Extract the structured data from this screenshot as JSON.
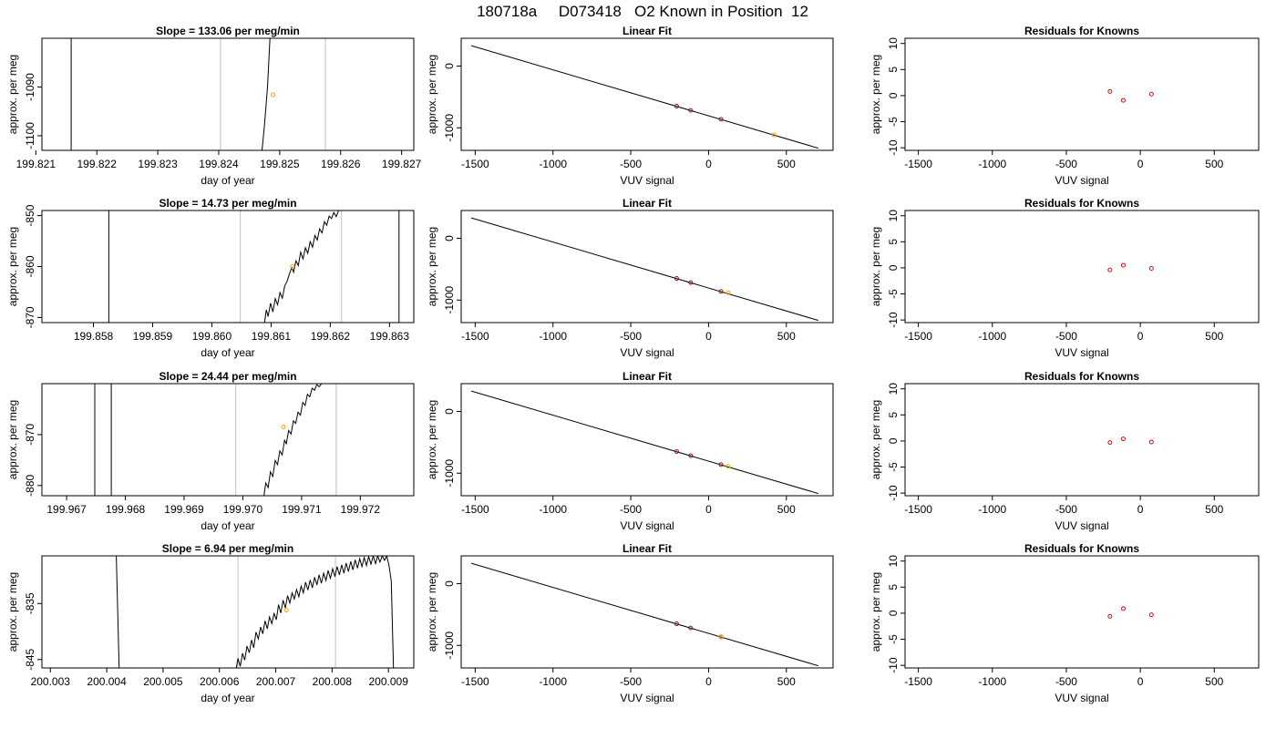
{
  "figure_title": "180718a     D073418   O2 Known in Position  12",
  "colors": {
    "trace": "#000000",
    "fit_line": "#000000",
    "vline": "#c0c0c0",
    "unknown_point": "#ffa500",
    "known_point": "#8b1a1a",
    "residual_point": "#d01010"
  },
  "chart_data": [
    {
      "type": "line",
      "title": "Slope =  133.06  per meg/min",
      "xlabel": "day of year",
      "ylabel": "approx. per meg",
      "xlim": [
        199.8211,
        199.8272
      ],
      "ylim": [
        -1103,
        -1080
      ],
      "xticks": [
        "199.821",
        "199.822",
        "199.823",
        "199.824",
        "199.825",
        "199.826",
        "199.827"
      ],
      "yticks": [
        "-1100",
        "-1090"
      ],
      "vlines": [
        199.82403,
        199.82575
      ],
      "trace": [
        [
          199.82158,
          -1103
        ],
        [
          199.82158,
          -1080
        ],
        null,
        [
          199.82471,
          -1103
        ],
        [
          199.82475,
          -1098
        ],
        [
          199.8248,
          -1090
        ],
        [
          199.82484,
          -1080
        ]
      ],
      "point": [
        199.82489,
        -1091.6
      ]
    },
    {
      "type": "scatter",
      "title": "Linear Fit",
      "xlabel": "VUV signal",
      "ylabel": "approx. per meg",
      "xlim": [
        -1590,
        800
      ],
      "ylim": [
        -1365,
        450
      ],
      "xticks": [
        "-1500",
        "-1000",
        "-500",
        "0",
        "500"
      ],
      "yticks": [
        "-1000",
        "0"
      ],
      "fit_line": [
        [
          -1525,
          330
        ],
        [
          705,
          -1330
        ]
      ],
      "known": [
        [
          -205,
          -650
        ],
        [
          -115,
          -717
        ],
        [
          80,
          -861
        ]
      ],
      "unknown": [
        [
          420,
          -1115
        ]
      ]
    },
    {
      "type": "scatter",
      "title": "Residuals for Knowns",
      "xlabel": "VUV signal",
      "ylabel": "approx. per meg",
      "xlim": [
        -1590,
        800
      ],
      "ylim": [
        -10.5,
        11
      ],
      "xticks": [
        "-1500",
        "-1000",
        "-500",
        "0",
        "500"
      ],
      "yticks": [
        "-10",
        "-5",
        "0",
        "5",
        "10"
      ],
      "points": [
        [
          -205,
          0.8
        ],
        [
          -115,
          -0.9
        ],
        [
          75,
          0.3
        ]
      ]
    },
    {
      "type": "line",
      "title": "Slope =  14.73  per meg/min",
      "xlabel": "day of year",
      "ylabel": "approx. per meg",
      "xlim": [
        199.85713,
        199.86341
      ],
      "ylim": [
        -871,
        -849
      ],
      "xticks": [
        "199.858",
        "199.859",
        "199.860",
        "199.861",
        "199.862",
        "199.863"
      ],
      "yticks": [
        "-870",
        "-860",
        "-850"
      ],
      "vlines": [
        199.86048,
        199.86219
      ],
      "trace": [
        [
          199.85826,
          -849
        ],
        [
          199.85826,
          -871
        ],
        null,
        [
          199.86089,
          -871
        ],
        [
          199.86092,
          -868.5
        ],
        [
          199.86095,
          -869.8
        ],
        [
          199.86099,
          -867.2
        ],
        [
          199.86103,
          -868.9
        ],
        [
          199.86107,
          -866.3
        ],
        [
          199.86111,
          -867.5
        ],
        [
          199.86115,
          -865.1
        ],
        [
          199.86119,
          -866.2
        ],
        [
          199.86123,
          -863.8
        ],
        [
          199.86127,
          -862.9
        ],
        [
          199.86131,
          -861.4
        ],
        [
          199.86135,
          -860.2
        ],
        [
          199.86138,
          -861.1
        ],
        [
          199.86142,
          -858.9
        ],
        [
          199.86146,
          -859.8
        ],
        [
          199.8615,
          -857.2
        ],
        [
          199.86154,
          -858.5
        ],
        [
          199.86158,
          -856.3
        ],
        [
          199.86162,
          -857.4
        ],
        [
          199.86166,
          -855.1
        ],
        [
          199.8617,
          -856.2
        ],
        [
          199.86174,
          -853.9
        ],
        [
          199.86178,
          -854.8
        ],
        [
          199.86182,
          -852.6
        ],
        [
          199.86186,
          -853.4
        ],
        [
          199.8619,
          -851.2
        ],
        [
          199.86194,
          -851.9
        ],
        [
          199.86198,
          -850.1
        ],
        [
          199.86202,
          -850.6
        ],
        [
          199.86206,
          -849.4
        ],
        [
          199.8621,
          -850.2
        ],
        [
          199.86214,
          -849
        ]
      ],
      "trace2": [
        [
          199.86316,
          -849
        ],
        [
          199.86316,
          -871
        ]
      ],
      "point": [
        199.86136,
        -860
      ]
    },
    {
      "type": "scatter",
      "title": "Linear Fit",
      "xlabel": "VUV signal",
      "ylabel": "approx. per meg",
      "xlim": [
        -1590,
        800
      ],
      "ylim": [
        -1365,
        450
      ],
      "xticks": [
        "-1500",
        "-1000",
        "-500",
        "0",
        "500"
      ],
      "yticks": [
        "-1000",
        "0"
      ],
      "fit_line": [
        [
          -1525,
          330
        ],
        [
          705,
          -1330
        ]
      ],
      "known": [
        [
          -205,
          -650
        ],
        [
          -115,
          -717
        ],
        [
          80,
          -861
        ]
      ],
      "unknown": [
        [
          125,
          -880
        ]
      ]
    },
    {
      "type": "scatter",
      "title": "Residuals for Knowns",
      "xlabel": "VUV signal",
      "ylabel": "approx. per meg",
      "xlim": [
        -1590,
        800
      ],
      "ylim": [
        -10.5,
        11
      ],
      "xticks": [
        "-1500",
        "-1000",
        "-500",
        "0",
        "500"
      ],
      "yticks": [
        "-10",
        "-5",
        "0",
        "5",
        "10"
      ],
      "points": [
        [
          -205,
          -0.4
        ],
        [
          -115,
          0.5
        ],
        [
          75,
          -0.1
        ]
      ]
    },
    {
      "type": "line",
      "title": "Slope =  24.44  per meg/min",
      "xlabel": "day of year",
      "ylabel": "approx. per meg",
      "xlim": [
        199.96658,
        199.97291
      ],
      "ylim": [
        -882,
        -860
      ],
      "xticks": [
        "199.967",
        "199.968",
        "199.969",
        "199.970",
        "199.971",
        "199.972"
      ],
      "yticks": [
        "-880",
        "-870"
      ],
      "vlines": [
        199.96988,
        199.97159
      ],
      "trace": [
        [
          199.96748,
          -860
        ],
        [
          199.96748,
          -882
        ],
        null,
        [
          199.96776,
          -882
        ],
        [
          199.96776,
          -860
        ],
        null,
        [
          199.97036,
          -882
        ],
        [
          199.97039,
          -879.5
        ],
        [
          199.97043,
          -880.4
        ],
        [
          199.97047,
          -877.3
        ],
        [
          199.97051,
          -878.2
        ],
        [
          199.97055,
          -875.1
        ],
        [
          199.97059,
          -875.9
        ],
        [
          199.97063,
          -873.2
        ],
        [
          199.97067,
          -874
        ],
        [
          199.97071,
          -871.1
        ],
        [
          199.97074,
          -871.8
        ],
        [
          199.97078,
          -869.2
        ],
        [
          199.97082,
          -869.9
        ],
        [
          199.97086,
          -867.3
        ],
        [
          199.9709,
          -867.8
        ],
        [
          199.97094,
          -865.6
        ],
        [
          199.97098,
          -866.2
        ],
        [
          199.97102,
          -863.7
        ],
        [
          199.97106,
          -864.3
        ],
        [
          199.9711,
          -862.1
        ],
        [
          199.97114,
          -862.6
        ],
        [
          199.97118,
          -860.9
        ],
        [
          199.97122,
          -861.3
        ],
        [
          199.97126,
          -860.2
        ],
        [
          199.9713,
          -860.6
        ],
        [
          199.97134,
          -860
        ]
      ],
      "point": [
        199.97069,
        -868.5
      ]
    },
    {
      "type": "scatter",
      "title": "Linear Fit",
      "xlabel": "VUV signal",
      "ylabel": "approx. per meg",
      "xlim": [
        -1590,
        800
      ],
      "ylim": [
        -1365,
        450
      ],
      "xticks": [
        "-1500",
        "-1000",
        "-500",
        "0",
        "500"
      ],
      "yticks": [
        "-1000",
        "0"
      ],
      "fit_line": [
        [
          -1525,
          330
        ],
        [
          705,
          -1330
        ]
      ],
      "known": [
        [
          -205,
          -650
        ],
        [
          -115,
          -717
        ],
        [
          80,
          -861
        ]
      ],
      "unknown": [
        [
          125,
          -890
        ]
      ]
    },
    {
      "type": "scatter",
      "title": "Residuals for Knowns",
      "xlabel": "VUV signal",
      "ylabel": "approx. per meg",
      "xlim": [
        -1590,
        800
      ],
      "ylim": [
        -10.5,
        11
      ],
      "xticks": [
        "-1500",
        "-1000",
        "-500",
        "0",
        "500"
      ],
      "yticks": [
        "-10",
        "-5",
        "0",
        "5",
        "10"
      ],
      "points": [
        [
          -205,
          -0.3
        ],
        [
          -115,
          0.4
        ],
        [
          75,
          -0.2
        ]
      ]
    },
    {
      "type": "line",
      "title": "Slope =  6.94  per meg/min",
      "xlabel": "day of year",
      "ylabel": "approx. per meg",
      "xlim": [
        200.00285,
        200.00945
      ],
      "ylim": [
        -846.5,
        -826.5
      ],
      "xticks": [
        "200.003",
        "200.004",
        "200.005",
        "200.006",
        "200.007",
        "200.008",
        "200.009"
      ],
      "yticks": [
        "-845",
        "-835"
      ],
      "vlines": [
        200.00633,
        200.00806
      ],
      "trace": [
        [
          200.00417,
          -826.5
        ],
        [
          200.00422,
          -846.5
        ],
        null,
        [
          200.0063,
          -846.5
        ],
        [
          200.00633,
          -844.8
        ],
        [
          200.00637,
          -846.2
        ],
        [
          200.00641,
          -843.9
        ],
        [
          200.00645,
          -845.1
        ],
        [
          200.00649,
          -842.6
        ],
        [
          200.00653,
          -843.8
        ],
        [
          200.00657,
          -841.5
        ],
        [
          200.00661,
          -842.9
        ],
        [
          200.00665,
          -840.1
        ],
        [
          200.00669,
          -841.3
        ],
        [
          200.00673,
          -839.2
        ],
        [
          200.00677,
          -840.4
        ],
        [
          200.00681,
          -838.1
        ],
        [
          200.00685,
          -839.5
        ],
        [
          200.00689,
          -837.4
        ],
        [
          200.00693,
          -838.6
        ],
        [
          200.00697,
          -836.8
        ],
        [
          200.00701,
          -837.9
        ],
        [
          200.00705,
          -835.2
        ],
        [
          200.00709,
          -836.7
        ],
        [
          200.00713,
          -834.4
        ],
        [
          200.00717,
          -835.8
        ],
        [
          200.00721,
          -833.6
        ],
        [
          200.00725,
          -834.9
        ],
        [
          200.00729,
          -833.1
        ],
        [
          200.00733,
          -834.2
        ],
        [
          200.00737,
          -832.5
        ],
        [
          200.00741,
          -833.8
        ],
        [
          200.00745,
          -831.9
        ],
        [
          200.00749,
          -833.1
        ],
        [
          200.00753,
          -831.2
        ],
        [
          200.00757,
          -832.6
        ],
        [
          200.00761,
          -830.8
        ],
        [
          200.00765,
          -832.2
        ],
        [
          200.00769,
          -830.3
        ],
        [
          200.00773,
          -831.7
        ],
        [
          200.00777,
          -829.9
        ],
        [
          200.00781,
          -831.4
        ],
        [
          200.00785,
          -829.6
        ],
        [
          200.00789,
          -830.9
        ],
        [
          200.00793,
          -829.1
        ],
        [
          200.00797,
          -830.5
        ],
        [
          200.00801,
          -828.8
        ],
        [
          200.00805,
          -830.2
        ],
        [
          200.00809,
          -828.4
        ],
        [
          200.00813,
          -829.9
        ],
        [
          200.00817,
          -828.1
        ],
        [
          200.00821,
          -829.6
        ],
        [
          200.00825,
          -827.8
        ],
        [
          200.00829,
          -829.3
        ],
        [
          200.00833,
          -827.5
        ],
        [
          200.00837,
          -829
        ],
        [
          200.00841,
          -827.2
        ],
        [
          200.00845,
          -828.7
        ],
        [
          200.00849,
          -827
        ],
        [
          200.00853,
          -828.4
        ],
        [
          200.00857,
          -826.8
        ],
        [
          200.00861,
          -828.2
        ],
        [
          200.00865,
          -826.6
        ],
        [
          200.00869,
          -828
        ],
        [
          200.00873,
          -826.5
        ],
        [
          200.00877,
          -827.9
        ],
        [
          200.00881,
          -826.5
        ],
        [
          200.00885,
          -827.6
        ],
        [
          200.00889,
          -826.5
        ],
        [
          200.00893,
          -827.3
        ],
        [
          200.00897,
          -826.5
        ],
        [
          200.00901,
          -828.2
        ],
        [
          200.00905,
          -831
        ],
        [
          200.00909,
          -846.5
        ]
      ],
      "point": [
        200.00719,
        -836.2
      ]
    },
    {
      "type": "scatter",
      "title": "Linear Fit",
      "xlabel": "VUV signal",
      "ylabel": "approx. per meg",
      "xlim": [
        -1590,
        800
      ],
      "ylim": [
        -1365,
        450
      ],
      "xticks": [
        "-1500",
        "-1000",
        "-500",
        "0",
        "500"
      ],
      "yticks": [
        "-1000",
        "0"
      ],
      "fit_line": [
        [
          -1525,
          330
        ],
        [
          705,
          -1330
        ]
      ],
      "known": [
        [
          -205,
          -650
        ],
        [
          -115,
          -717
        ],
        [
          80,
          -861
        ]
      ],
      "unknown": [
        [
          80,
          -856
        ]
      ]
    },
    {
      "type": "scatter",
      "title": "Residuals for Knowns",
      "xlabel": "VUV signal",
      "ylabel": "approx. per meg",
      "xlim": [
        -1590,
        800
      ],
      "ylim": [
        -10.5,
        11
      ],
      "xticks": [
        "-1500",
        "-1000",
        "-500",
        "0",
        "500"
      ],
      "yticks": [
        "-10",
        "-5",
        "0",
        "5",
        "10"
      ],
      "points": [
        [
          -205,
          -0.6
        ],
        [
          -115,
          0.9
        ],
        [
          75,
          -0.3
        ]
      ]
    }
  ]
}
